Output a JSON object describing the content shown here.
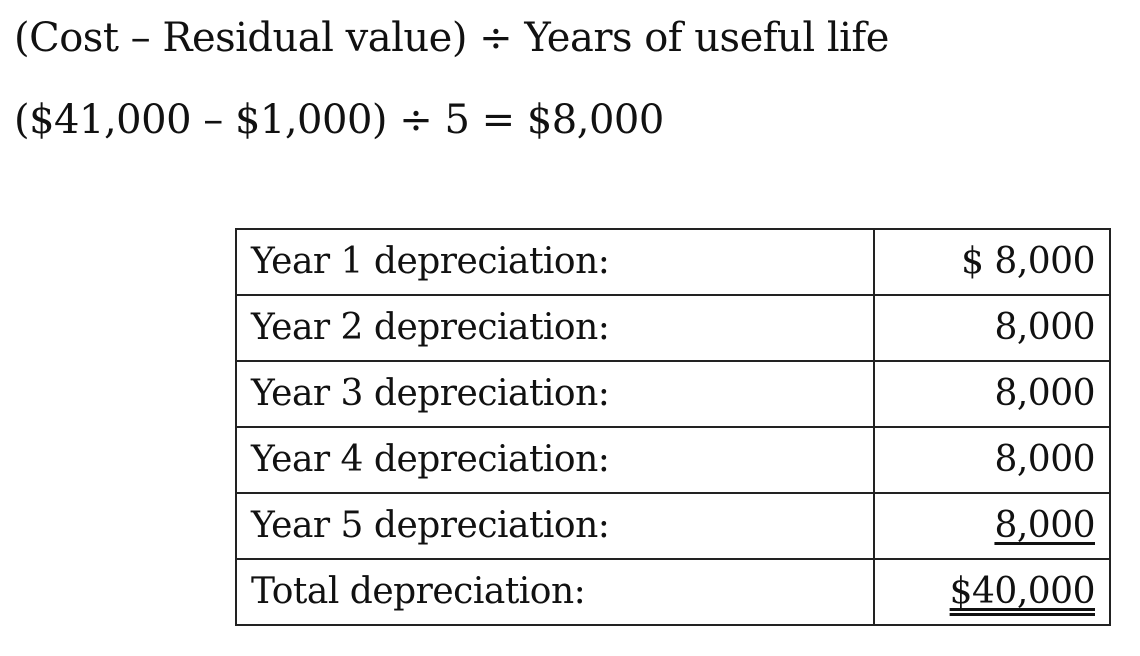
{
  "formula": {
    "line1": "(Cost – Residual value) ÷ Years of useful life",
    "line2": "($41,000 – $1,000) ÷ 5 = $8,000"
  },
  "table": {
    "rows": [
      {
        "label": "Year 1 depreciation:",
        "value": "$ 8,000"
      },
      {
        "label": "Year 2 depreciation:",
        "value": "8,000"
      },
      {
        "label": "Year 3 depreciation:",
        "value": "8,000"
      },
      {
        "label": "Year 4 depreciation:",
        "value": "8,000"
      },
      {
        "label": "Year 5 depreciation:",
        "value": "8,000"
      },
      {
        "label": "Total depreciation:",
        "value": "$40,000"
      }
    ]
  }
}
